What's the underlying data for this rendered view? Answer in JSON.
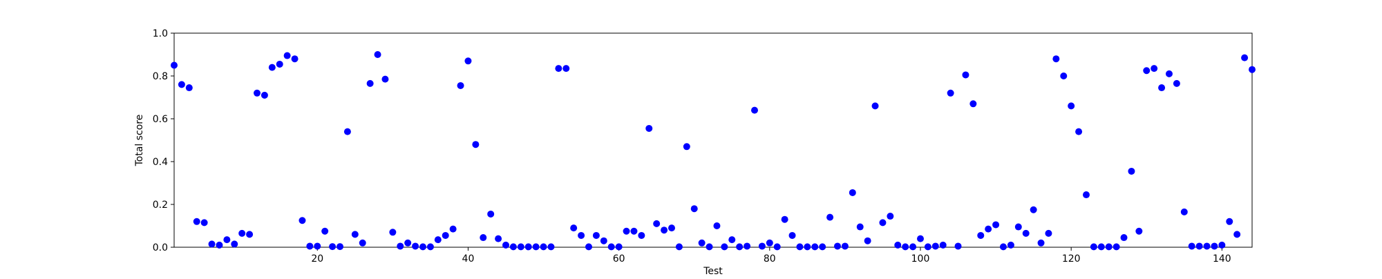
{
  "chart_data": {
    "type": "scatter",
    "title": "",
    "xlabel": "Test",
    "ylabel": "Total score",
    "xlim": [
      1,
      144
    ],
    "ylim": [
      0,
      1
    ],
    "x_ticks": [
      20,
      40,
      60,
      80,
      100,
      120,
      140
    ],
    "y_ticks": [
      0.0,
      0.2,
      0.4,
      0.6,
      0.8,
      1.0
    ],
    "x_tick_labels": [
      "20",
      "40",
      "60",
      "80",
      "100",
      "120",
      "140"
    ],
    "y_tick_labels": [
      "0.0",
      "0.2",
      "0.4",
      "0.6",
      "0.8",
      "1.0"
    ],
    "grid": false,
    "marker_color": "#0000ff",
    "x": [
      1,
      2,
      3,
      4,
      5,
      6,
      7,
      8,
      9,
      10,
      11,
      12,
      13,
      14,
      15,
      16,
      17,
      18,
      19,
      20,
      21,
      22,
      23,
      24,
      25,
      26,
      27,
      28,
      29,
      30,
      31,
      32,
      33,
      34,
      35,
      36,
      37,
      38,
      39,
      40,
      41,
      42,
      43,
      44,
      45,
      46,
      47,
      48,
      49,
      50,
      51,
      52,
      53,
      54,
      55,
      56,
      57,
      58,
      59,
      60,
      61,
      62,
      63,
      64,
      65,
      66,
      67,
      68,
      69,
      70,
      71,
      72,
      73,
      74,
      75,
      76,
      77,
      78,
      79,
      80,
      81,
      82,
      83,
      84,
      85,
      86,
      87,
      88,
      89,
      90,
      91,
      92,
      93,
      94,
      95,
      96,
      97,
      98,
      99,
      100,
      101,
      102,
      103,
      104,
      105,
      106,
      107,
      108,
      109,
      110,
      111,
      112,
      113,
      114,
      115,
      116,
      117,
      118,
      119,
      120,
      121,
      122,
      123,
      124,
      125,
      126,
      127,
      128,
      129,
      130,
      131,
      132,
      133,
      134,
      135,
      136,
      137,
      138,
      139,
      140,
      141,
      142,
      143,
      144
    ],
    "y": [
      0.85,
      0.76,
      0.745,
      0.12,
      0.115,
      0.015,
      0.01,
      0.035,
      0.015,
      0.065,
      0.06,
      0.72,
      0.71,
      0.84,
      0.855,
      0.895,
      0.88,
      0.125,
      0.005,
      0.005,
      0.075,
      0.003,
      0.003,
      0.54,
      0.06,
      0.02,
      0.765,
      0.9,
      0.785,
      0.07,
      0.005,
      0.02,
      0.005,
      0.002,
      0.002,
      0.035,
      0.055,
      0.085,
      0.755,
      0.87,
      0.48,
      0.045,
      0.155,
      0.04,
      0.01,
      0.002,
      0.002,
      0.002,
      0.002,
      0.002,
      0.002,
      0.835,
      0.835,
      0.09,
      0.055,
      0.002,
      0.055,
      0.03,
      0.002,
      0.002,
      0.075,
      0.075,
      0.055,
      0.555,
      0.11,
      0.08,
      0.09,
      0.002,
      0.47,
      0.18,
      0.02,
      0.002,
      0.1,
      0.002,
      0.035,
      0.002,
      0.005,
      0.64,
      0.005,
      0.02,
      0.002,
      0.13,
      0.055,
      0.002,
      0.002,
      0.002,
      0.002,
      0.14,
      0.005,
      0.005,
      0.255,
      0.095,
      0.03,
      0.66,
      0.115,
      0.145,
      0.01,
      0.002,
      0.002,
      0.04,
      0.002,
      0.005,
      0.01,
      0.72,
      0.005,
      0.805,
      0.67,
      0.055,
      0.085,
      0.105,
      0.002,
      0.01,
      0.095,
      0.065,
      0.175,
      0.02,
      0.065,
      0.88,
      0.8,
      0.66,
      0.54,
      0.245,
      0.002,
      0.002,
      0.002,
      0.002,
      0.045,
      0.355,
      0.075,
      0.825,
      0.835,
      0.745,
      0.81,
      0.765,
      0.165,
      0.005,
      0.005,
      0.005,
      0.005,
      0.01,
      0.12,
      0.06,
      0.885,
      0.83
    ]
  }
}
